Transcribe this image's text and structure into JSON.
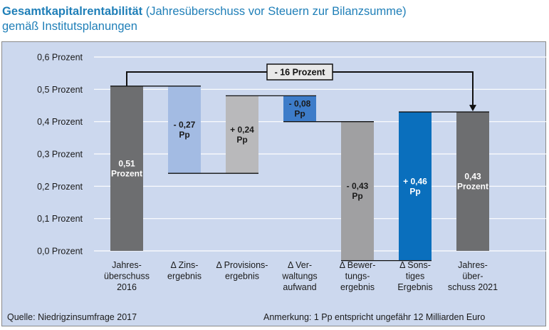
{
  "header": {
    "title_bold": "Gesamtkapitalrentabilität",
    "title_rest": " (Jahresüberschuss vor Steuern zur Bilanzsumme)",
    "subtitle": "gemäß Institutsplanungen"
  },
  "footer": {
    "source": "Quelle: Niedrigzinsumfrage 2017",
    "note": "Anmerkung: 1 Pp entspricht ungefähr 12 Milliarden Euro"
  },
  "chart_data": {
    "type": "bar",
    "subtype": "waterfall",
    "ylim": [
      0,
      0.6
    ],
    "yticks": [
      0,
      0.1,
      0.2,
      0.3,
      0.4,
      0.5,
      0.6
    ],
    "ytick_labels": [
      "0,0 Prozent",
      "0,1 Prozent",
      "0,2 Prozent",
      "0,3 Prozent",
      "0,4 Prozent",
      "0,5 Prozent",
      "0,6 Prozent"
    ],
    "grid": true,
    "categories": [
      [
        "Jahres-",
        "überschuss",
        "2016"
      ],
      [
        "Δ Zins-",
        "ergebnis"
      ],
      [
        "Δ Provisions-",
        "ergebnis"
      ],
      [
        "Δ Ver-",
        "waltungs",
        "aufwand"
      ],
      [
        "Δ Bewer-",
        "tungs-",
        "ergebnis"
      ],
      [
        "Δ Sons-",
        "tiges",
        "Ergebnis"
      ],
      [
        "Jahres-",
        "über-",
        "schuss 2021"
      ]
    ],
    "bars": [
      {
        "start": 0,
        "end": 0.51,
        "label": [
          "0,51",
          "Prozent"
        ],
        "color": "#6d6e70",
        "label_color": "#ffffff"
      },
      {
        "start": 0.51,
        "end": 0.24,
        "label": [
          "- 0,27",
          "Pp"
        ],
        "color": "#a3bbe3",
        "label_color": "#1a1a1a"
      },
      {
        "start": 0.24,
        "end": 0.48,
        "label": [
          "+ 0,24",
          "Pp"
        ],
        "color": "#b9b9bb",
        "label_color": "#1a1a1a"
      },
      {
        "start": 0.48,
        "end": 0.4,
        "label": [
          "- 0,08",
          "Pp"
        ],
        "color": "#3d7cc9",
        "label_color": "#1a1a1a"
      },
      {
        "start": 0.4,
        "end": -0.03,
        "label": [
          "- 0,43",
          "Pp"
        ],
        "color": "#a0a0a2",
        "label_color": "#1a1a1a"
      },
      {
        "start": -0.03,
        "end": 0.43,
        "label": [
          "+ 0,46",
          "Pp"
        ],
        "color": "#0a6fbd",
        "label_color": "#ffffff"
      },
      {
        "start": 0,
        "end": 0.43,
        "label": [
          "0,43",
          "Prozent"
        ],
        "color": "#6d6e70",
        "label_color": "#ffffff"
      }
    ],
    "annotation": "- 16 Prozent"
  }
}
